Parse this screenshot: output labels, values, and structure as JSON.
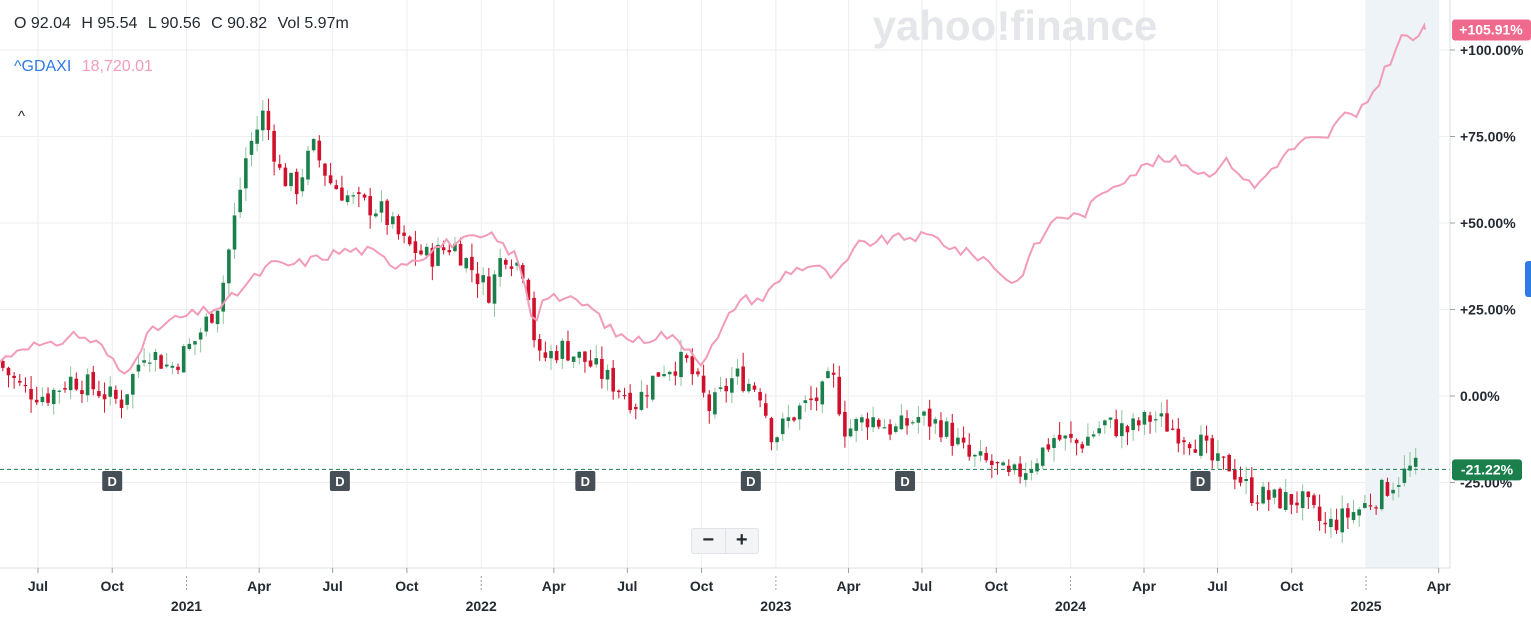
{
  "watermark": "yahoo!finance",
  "ohlc": {
    "open": "O 92.04",
    "high": "H 95.54",
    "low": "L 90.56",
    "close": "C 90.82",
    "volume": "Vol 5.97m"
  },
  "comparison": {
    "symbol": "^GDAXI",
    "value": "18,720.01",
    "color": "#f29cb8"
  },
  "controls": {
    "collapse": "^",
    "zoom_out": "−",
    "zoom_in": "+"
  },
  "chart_data": {
    "type": "candlestick+line",
    "x_range": [
      "2020-05-15",
      "2025-04-15"
    ],
    "y_range_pct": [
      -50,
      110
    ],
    "y_ticks": [
      {
        "value": 100,
        "label": "+100.00%"
      },
      {
        "value": 75,
        "label": "+75.00%"
      },
      {
        "value": 50,
        "label": "+50.00%"
      },
      {
        "value": 25,
        "label": "+25.00%"
      },
      {
        "value": 0,
        "label": "0.00%"
      },
      {
        "value": -25,
        "label": "-25.00%"
      }
    ],
    "x_ticks": [
      {
        "date": "2020-07-01",
        "label": "Jul"
      },
      {
        "date": "2020-10-01",
        "label": "Oct"
      },
      {
        "date": "2021-01-01",
        "label": "2021",
        "year": true
      },
      {
        "date": "2021-04-01",
        "label": "Apr"
      },
      {
        "date": "2021-07-01",
        "label": "Jul"
      },
      {
        "date": "2021-10-01",
        "label": "Oct"
      },
      {
        "date": "2022-01-01",
        "label": "2022",
        "year": true
      },
      {
        "date": "2022-04-01",
        "label": "Apr"
      },
      {
        "date": "2022-07-01",
        "label": "Jul"
      },
      {
        "date": "2022-10-01",
        "label": "Oct"
      },
      {
        "date": "2023-01-01",
        "label": "2023",
        "year": true
      },
      {
        "date": "2023-04-01",
        "label": "Apr"
      },
      {
        "date": "2023-07-01",
        "label": "Jul"
      },
      {
        "date": "2023-10-01",
        "label": "Oct"
      },
      {
        "date": "2024-01-01",
        "label": "2024",
        "year": true
      },
      {
        "date": "2024-04-01",
        "label": "Apr"
      },
      {
        "date": "2024-07-01",
        "label": "Jul"
      },
      {
        "date": "2024-10-01",
        "label": "Oct"
      },
      {
        "date": "2025-01-01",
        "label": "2025",
        "year": true
      },
      {
        "date": "2025-04-01",
        "label": "Apr"
      }
    ],
    "highlight_range": [
      "2025-01-01",
      "2025-04-01"
    ],
    "dividend_markers": {
      "label": "D",
      "dates": [
        "2020-10-01",
        "2021-07-10",
        "2022-05-10",
        "2022-12-01",
        "2023-06-10",
        "2024-06-10"
      ]
    },
    "stock_change": {
      "value": -21.22,
      "label": "-21.22%",
      "color": "#1a7f4b"
    },
    "index_change": {
      "value": 105.91,
      "label": "+105.91%",
      "color": "#f06a8e"
    },
    "up_color": "#1a7f4b",
    "down_color": "#d0112b",
    "stock_series": [
      [
        "2020-05-15",
        10
      ],
      [
        "2020-06-15",
        2
      ],
      [
        "2020-07-15",
        0
      ],
      [
        "2020-08-15",
        5
      ],
      [
        "2020-09-15",
        2
      ],
      [
        "2020-10-15",
        -2
      ],
      [
        "2020-11-15",
        14
      ],
      [
        "2020-12-15",
        8
      ],
      [
        "2021-01-15",
        16
      ],
      [
        "2021-02-15",
        28
      ],
      [
        "2021-03-01",
        46
      ],
      [
        "2021-03-20",
        70
      ],
      [
        "2021-04-10",
        82
      ],
      [
        "2021-05-01",
        64
      ],
      [
        "2021-05-20",
        60
      ],
      [
        "2021-06-10",
        72
      ],
      [
        "2021-07-01",
        62
      ],
      [
        "2021-08-01",
        56
      ],
      [
        "2021-09-01",
        54
      ],
      [
        "2021-10-01",
        44
      ],
      [
        "2021-11-01",
        40
      ],
      [
        "2021-12-01",
        44
      ],
      [
        "2022-01-15",
        30
      ],
      [
        "2022-02-01",
        42
      ],
      [
        "2022-03-01",
        36
      ],
      [
        "2022-03-15",
        10
      ],
      [
        "2022-04-15",
        14
      ],
      [
        "2022-05-15",
        10
      ],
      [
        "2022-06-15",
        4
      ],
      [
        "2022-07-15",
        -2
      ],
      [
        "2022-08-15",
        8
      ],
      [
        "2022-09-15",
        10
      ],
      [
        "2022-10-15",
        -4
      ],
      [
        "2022-11-15",
        6
      ],
      [
        "2022-12-15",
        2
      ],
      [
        "2023-01-01",
        -12
      ],
      [
        "2023-02-01",
        -4
      ],
      [
        "2023-03-01",
        0
      ],
      [
        "2023-03-15",
        6
      ],
      [
        "2023-04-01",
        -10
      ],
      [
        "2023-05-01",
        -6
      ],
      [
        "2023-06-01",
        -10
      ],
      [
        "2023-07-01",
        -6
      ],
      [
        "2023-08-01",
        -9
      ],
      [
        "2023-09-01",
        -18
      ],
      [
        "2023-10-01",
        -20
      ],
      [
        "2023-10-20",
        -24
      ],
      [
        "2023-11-15",
        -20
      ],
      [
        "2023-12-15",
        -12
      ],
      [
        "2024-01-15",
        -14
      ],
      [
        "2024-02-15",
        -8
      ],
      [
        "2024-03-15",
        -10
      ],
      [
        "2024-04-15",
        -6
      ],
      [
        "2024-05-15",
        -10
      ],
      [
        "2024-06-15",
        -14
      ],
      [
        "2024-07-01",
        -20
      ],
      [
        "2024-07-20",
        -20
      ],
      [
        "2024-08-15",
        -28
      ],
      [
        "2024-09-15",
        -30
      ],
      [
        "2024-10-15",
        -30
      ],
      [
        "2024-11-15",
        -38
      ],
      [
        "2024-12-01",
        -36
      ],
      [
        "2025-01-01",
        -32
      ],
      [
        "2025-02-01",
        -26
      ],
      [
        "2025-03-01",
        -21
      ]
    ],
    "index_series": [
      [
        "2020-05-15",
        10
      ],
      [
        "2020-06-15",
        15
      ],
      [
        "2020-07-15",
        14
      ],
      [
        "2020-08-15",
        18
      ],
      [
        "2020-09-15",
        15
      ],
      [
        "2020-10-15",
        6
      ],
      [
        "2020-11-15",
        18
      ],
      [
        "2020-12-15",
        22
      ],
      [
        "2021-01-15",
        24
      ],
      [
        "2021-02-15",
        26
      ],
      [
        "2021-03-15",
        32
      ],
      [
        "2021-04-15",
        38
      ],
      [
        "2021-05-15",
        38
      ],
      [
        "2021-06-15",
        40
      ],
      [
        "2021-07-15",
        42
      ],
      [
        "2021-08-15",
        42
      ],
      [
        "2021-09-15",
        38
      ],
      [
        "2021-10-15",
        40
      ],
      [
        "2021-11-15",
        44
      ],
      [
        "2021-12-15",
        45
      ],
      [
        "2022-01-15",
        46
      ],
      [
        "2022-02-15",
        40
      ],
      [
        "2022-03-08",
        20
      ],
      [
        "2022-03-20",
        30
      ],
      [
        "2022-04-15",
        28
      ],
      [
        "2022-05-15",
        26
      ],
      [
        "2022-06-15",
        18
      ],
      [
        "2022-07-15",
        16
      ],
      [
        "2022-08-15",
        18
      ],
      [
        "2022-09-15",
        14
      ],
      [
        "2022-10-01",
        10
      ],
      [
        "2022-10-20",
        16
      ],
      [
        "2022-11-15",
        28
      ],
      [
        "2022-12-15",
        28
      ],
      [
        "2023-01-15",
        36
      ],
      [
        "2023-02-15",
        38
      ],
      [
        "2023-03-15",
        34
      ],
      [
        "2023-04-15",
        44
      ],
      [
        "2023-05-15",
        45
      ],
      [
        "2023-06-15",
        46
      ],
      [
        "2023-07-15",
        46
      ],
      [
        "2023-08-15",
        42
      ],
      [
        "2023-09-15",
        40
      ],
      [
        "2023-10-25",
        32
      ],
      [
        "2023-11-15",
        42
      ],
      [
        "2023-12-15",
        52
      ],
      [
        "2024-01-15",
        52
      ],
      [
        "2024-02-15",
        60
      ],
      [
        "2024-03-15",
        64
      ],
      [
        "2024-04-15",
        68
      ],
      [
        "2024-05-15",
        68
      ],
      [
        "2024-06-15",
        64
      ],
      [
        "2024-07-15",
        68
      ],
      [
        "2024-08-15",
        60
      ],
      [
        "2024-09-15",
        68
      ],
      [
        "2024-10-15",
        74
      ],
      [
        "2024-11-15",
        74
      ],
      [
        "2024-12-01",
        82
      ],
      [
        "2024-12-20",
        80
      ],
      [
        "2025-01-15",
        90
      ],
      [
        "2025-02-15",
        104
      ],
      [
        "2025-03-01",
        103
      ],
      [
        "2025-03-15",
        106
      ]
    ]
  }
}
